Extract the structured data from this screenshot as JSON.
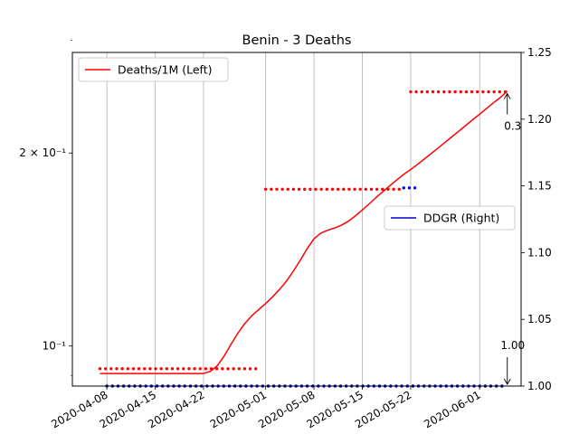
{
  "chart_data": {
    "type": "line",
    "title": "Benin - 3 Deaths",
    "x_axis": {
      "type": "date",
      "range": [
        "2020-04-03",
        "2020-06-07"
      ],
      "tick_labels": [
        "2020-04-08",
        "2020-04-15",
        "2020-04-22",
        "2020-05-01",
        "2020-05-08",
        "2020-05-15",
        "2020-05-22",
        "2020-06-01"
      ],
      "tick_dates": [
        "2020-04-08",
        "2020-04-15",
        "2020-04-22",
        "2020-05-01",
        "2020-05-08",
        "2020-05-15",
        "2020-05-22",
        "2020-06-01"
      ]
    },
    "left_axis": {
      "scale": "log",
      "range": [
        0.0866,
        0.287
      ],
      "major_tick_labels": [
        "$10^{-1}$",
        "$2\\times10^{-1}$"
      ],
      "major_tick_display": [
        "10⁻¹",
        "2 × 10⁻¹"
      ],
      "major_tick_values": [
        0.1,
        0.2
      ],
      "minor_tick_values": [
        0.09,
        0.3
      ]
    },
    "right_axis": {
      "scale": "linear",
      "range": [
        1.0,
        1.25
      ],
      "tick_labels": [
        "1.00",
        "1.05",
        "1.10",
        "1.15",
        "1.20",
        "1.25"
      ],
      "tick_values": [
        1.0,
        1.05,
        1.1,
        1.15,
        1.2,
        1.25
      ]
    },
    "grid": "vertical",
    "series": [
      {
        "name": "Deaths/1M (Left)",
        "axis": "left",
        "color": "#ff0000",
        "style": "solid",
        "points": [
          [
            "2020-04-07",
            0.0906
          ],
          [
            "2020-04-13",
            0.0906
          ],
          [
            "2020-04-19",
            0.0906
          ],
          [
            "2020-04-22",
            0.0906
          ],
          [
            "2020-04-23",
            0.0913
          ],
          [
            "2020-04-24",
            0.0932
          ],
          [
            "2020-04-25",
            0.0965
          ],
          [
            "2020-04-26",
            0.1007
          ],
          [
            "2020-04-27",
            0.1048
          ],
          [
            "2020-04-28",
            0.1085
          ],
          [
            "2020-04-29",
            0.1115
          ],
          [
            "2020-04-30",
            0.114
          ],
          [
            "2020-05-01",
            0.1165
          ],
          [
            "2020-05-02",
            0.1193
          ],
          [
            "2020-05-03",
            0.1225
          ],
          [
            "2020-05-04",
            0.1262
          ],
          [
            "2020-05-05",
            0.1308
          ],
          [
            "2020-05-06",
            0.136
          ],
          [
            "2020-05-07",
            0.1418
          ],
          [
            "2020-05-08",
            0.147
          ],
          [
            "2020-05-09",
            0.15
          ],
          [
            "2020-05-10",
            0.1516
          ],
          [
            "2020-05-11",
            0.1528
          ],
          [
            "2020-05-12",
            0.1544
          ],
          [
            "2020-05-13",
            0.1566
          ],
          [
            "2020-05-14",
            0.1596
          ],
          [
            "2020-05-15",
            0.163
          ],
          [
            "2020-05-16",
            0.1666
          ],
          [
            "2020-05-17",
            0.1705
          ],
          [
            "2020-05-18",
            0.1742
          ],
          [
            "2020-05-19",
            0.1779
          ],
          [
            "2020-05-20",
            0.1816
          ],
          [
            "2020-05-21",
            0.1852
          ],
          [
            "2020-05-22",
            0.1885
          ],
          [
            "2020-05-23",
            0.192
          ],
          [
            "2020-05-24",
            0.1958
          ],
          [
            "2020-05-25",
            0.1997
          ],
          [
            "2020-05-26",
            0.2037
          ],
          [
            "2020-05-27",
            0.2079
          ],
          [
            "2020-05-28",
            0.2121
          ],
          [
            "2020-05-29",
            0.2164
          ],
          [
            "2020-05-30",
            0.2209
          ],
          [
            "2020-05-31",
            0.2255
          ],
          [
            "2020-06-01",
            0.2299
          ],
          [
            "2020-06-02",
            0.2347
          ],
          [
            "2020-06-03",
            0.2395
          ],
          [
            "2020-06-04",
            0.2442
          ],
          [
            "2020-06-05",
            0.2497
          ]
        ]
      },
      {
        "name": "DDGR (Right)",
        "axis": "right",
        "color": "#0000cc",
        "style": "dotted",
        "points": [
          [
            "2020-04-08",
            1.0
          ],
          [
            "2020-06-05",
            1.0
          ]
        ]
      }
    ],
    "dotted_segments": [
      {
        "color": "#ff0000",
        "axis": "right",
        "from": "2020-04-07",
        "to": "2020-04-30",
        "value": 1.013
      },
      {
        "color": "#ff0000",
        "axis": "right",
        "from": "2020-05-01",
        "to": "2020-05-21",
        "value": 1.1475
      },
      {
        "color": "#ff0000",
        "axis": "right",
        "from": "2020-05-22",
        "to": "2020-06-05",
        "value": 1.2205
      },
      {
        "color": "#0000ff",
        "axis": "right",
        "from": "2020-05-21",
        "to": "2020-05-23",
        "value": 1.1485
      }
    ],
    "annotations": [
      {
        "text": "0.3",
        "target": [
          "2020-06-05",
          1.2205
        ]
      },
      {
        "text": "1.00",
        "target": [
          "2020-06-05",
          1.0
        ]
      }
    ],
    "legends": [
      {
        "entries": [
          "Deaths/1M (Left)"
        ],
        "placement": "upper-left"
      },
      {
        "entries": [
          "DDGR (Right)"
        ],
        "placement": "center-right"
      }
    ]
  }
}
